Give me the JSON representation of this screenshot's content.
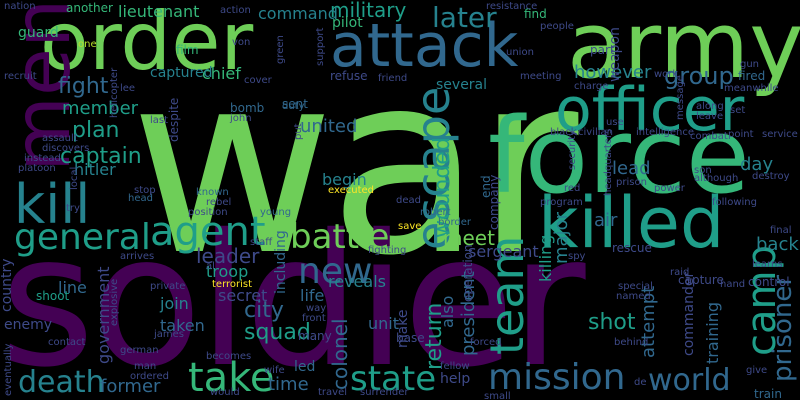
{
  "words": {
    "war": "war",
    "soldier": "soldier",
    "order": "order",
    "army": "army",
    "force": "force",
    "officer": "officer",
    "attack": "attack",
    "men": "men",
    "killed": "killed",
    "kill": "kill",
    "agent": "agent",
    "escape": "escape",
    "mission": "mission",
    "team": "team",
    "camp": "camp",
    "take": "take",
    "death": "death",
    "state": "state",
    "battle": "battle",
    "general": "general",
    "world": "world",
    "new": "new",
    "later": "later",
    "military": "military",
    "group": "group",
    "captain": "captain",
    "prisoner": "prisoner",
    "fight": "fight",
    "plan": "plan",
    "member": "member",
    "however": "however",
    "united": "united",
    "wounded": "wounded",
    "command": "command",
    "lieutenant": "lieutenant",
    "guard": "guard",
    "chief": "chief",
    "captured": "captured",
    "leader": "leader",
    "city": "city",
    "squad": "squad",
    "former": "former",
    "time": "time",
    "colonel": "colonel",
    "return": "return",
    "president": "president",
    "shot": "shot",
    "attempt": "attempt",
    "training": "training",
    "commander": "commander",
    "government": "government",
    "meet": "meet",
    "sergeant": "sergeant",
    "reveals": "reveals",
    "begin": "begin",
    "major": "major",
    "day": "day",
    "back": "back",
    "lead": "lead",
    "air": "air",
    "killing": "killing",
    "several": "several",
    "sent": "sent",
    "hitler": "hitler",
    "troop": "troop",
    "secret": "secret",
    "life": "life",
    "join": "join",
    "taken": "taken",
    "unit": "unit",
    "help": "help",
    "also": "also",
    "make": "make",
    "enemy": "enemy",
    "country": "country",
    "line": "line",
    "led": "led",
    "including": "including",
    "despite": "despite",
    "pilot": "pilot",
    "another": "another",
    "find": "find",
    "film": "film",
    "weapon": "weapon",
    "part": "part",
    "fired": "fired",
    "control": "control",
    "capture": "capture",
    "rescue": "rescue",
    "train": "train",
    "end": "end",
    "company": "company",
    "operation": "operation",
    "refuse": "refuse",
    "bomb": "bomb",
    "executed": "executed",
    "known": "known",
    "shoot": "shoot",
    "save": "save",
    "robert": "robert",
    "border": "border",
    "fighting": "fighting",
    "staff": "staff",
    "terrorist": "terrorist",
    "explosive": "explosive",
    "private": "private",
    "arrives": "arrives",
    "becomes": "becomes",
    "ordered": "ordered",
    "man": "man",
    "contact": "contact",
    "james": "james",
    "wife": "wife",
    "would": "would",
    "travel": "travel",
    "surrender": "surrender",
    "fellow": "fellow",
    "forced": "forced",
    "base": "base",
    "many": "many",
    "front": "front",
    "way": "way",
    "put": "put",
    "duty": "duty",
    "young": "young",
    "position": "position",
    "rebel": "rebel",
    "head": "head",
    "stop": "stop",
    "try": "try",
    "platoon": "platoon",
    "instead": "instead",
    "assault": "assault",
    "local": "local",
    "nation": "nation",
    "recruit": "recruit",
    "helicopter": "helicopter",
    "one": "one",
    "lee": "lee",
    "john": "john",
    "von": "von",
    "action": "action",
    "friend": "friend",
    "meeting": "meeting",
    "union": "union",
    "resistance": "resistance",
    "people": "people",
    "gun": "gun",
    "meanwhile": "meanwhile",
    "work": "work",
    "message": "message",
    "along": "along",
    "leave": "leave",
    "set": "set",
    "charge": "charge",
    "civilian": "civilian",
    "intelligence": "intelligence",
    "combat": "combat",
    "point": "point",
    "service": "service",
    "black": "black",
    "use": "use",
    "security": "security",
    "son": "son",
    "although": "although",
    "destroy": "destroy",
    "prison": "prison",
    "power": "power",
    "red": "red",
    "program": "program",
    "following": "following",
    "final": "final",
    "learns": "learns",
    "spy": "spy",
    "raid": "raid",
    "hand": "hand",
    "special": "special",
    "named": "named",
    "behind": "behind",
    "give": "give",
    "de": "de",
    "small": "small",
    "eventually": "eventually",
    "dead": "dead",
    "cover": "cover",
    "headquarters": "headquarters",
    "support": "support",
    "green": "green",
    "al": "al",
    "german": "german",
    "discovers": "discovers",
    "last": "last"
  }
}
